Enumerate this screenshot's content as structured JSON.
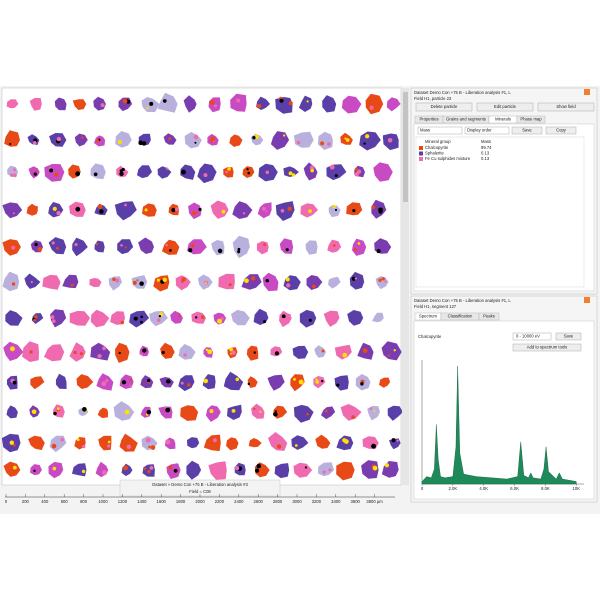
{
  "left_panel": {
    "caption": "Dataset » Demo Con +75 B - Liberation analysis #3",
    "field": "Field = C08",
    "ruler": {
      "labels": [
        "0",
        "200",
        "400",
        "600",
        "800",
        "1000",
        "1200",
        "1400",
        "1600",
        "1800",
        "2000",
        "2200",
        "2400",
        "2600",
        "2800",
        "3000",
        "3200",
        "3400",
        "3600",
        "3800 µm"
      ]
    }
  },
  "particle_panel": {
    "title": "Dataset Demo Con +75 B - Liberation analysis #1, L",
    "subtitle": "Field H1, particle 23",
    "buttons": [
      "Delete particle",
      "Edit particle",
      "Show field"
    ],
    "tabs": [
      "Properties",
      "Grains and segments",
      "Minerals",
      "Phase map"
    ],
    "active_tab": 2,
    "controls": {
      "dropdowns": [
        "Mass",
        "Display order"
      ],
      "buttons": [
        "Save",
        "Copy"
      ]
    },
    "table": {
      "headers": [
        "Mineral group",
        "Mass"
      ],
      "rows": [
        {
          "name": "Chalcopyrite",
          "mass": 99.74,
          "color": "#e84a17"
        },
        {
          "name": "Sphalerite",
          "mass": 0.13,
          "color": "#5b3fa8"
        },
        {
          "name": "Fe Cu sulphides mixture",
          "mass": 0.13,
          "color": "#f06ab0"
        }
      ]
    }
  },
  "spectrum_panel": {
    "title": "Dataset Demo Con +75 B - Liberation analysis #1, L",
    "subtitle": "Field H1, segment 127",
    "tabs": [
      "Spectrum",
      "Classification",
      "Peaks"
    ],
    "active_tab": 0,
    "mineral": "Chalcopyrite",
    "range": "0 - 10000 eV",
    "buttons": [
      "Save",
      "Add to spectrum tools"
    ],
    "chart_data": {
      "type": "area",
      "color": "#1e8a5a",
      "x": [
        0,
        300,
        600,
        800,
        930,
        1050,
        1200,
        1500,
        2000,
        2200,
        2310,
        2450,
        2700,
        3500,
        4500,
        5500,
        6200,
        6400,
        6600,
        6900,
        7050,
        7200,
        7700,
        7900,
        8040,
        8200,
        8700,
        8900,
        9100,
        10000
      ],
      "values": [
        2,
        6,
        5,
        12,
        48,
        20,
        6,
        5,
        6,
        30,
        95,
        25,
        8,
        6,
        5,
        4,
        6,
        34,
        7,
        5,
        9,
        5,
        4,
        12,
        30,
        10,
        4,
        9,
        4,
        2
      ],
      "xlim": [
        0,
        10500
      ],
      "ylim": [
        0,
        100
      ],
      "xticks": [
        0,
        {
          "value": 2000,
          "label": "2.0K"
        },
        {
          "value": 4000,
          "label": "4.0K"
        },
        {
          "value": 6000,
          "label": "6.0K"
        },
        {
          "value": 8000,
          "label": "8.0K"
        },
        {
          "value": 10000,
          "label": "10K"
        }
      ]
    }
  }
}
